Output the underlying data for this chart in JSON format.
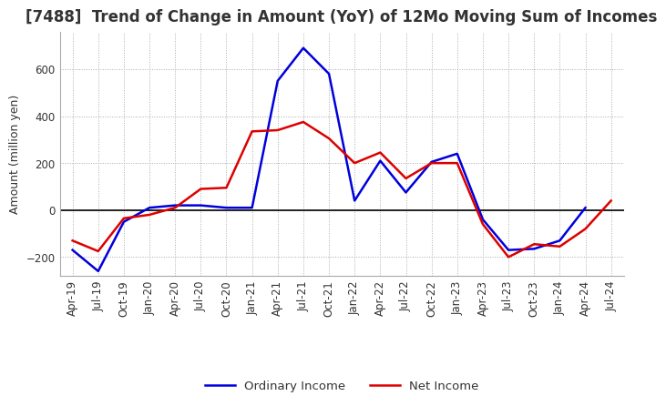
{
  "title": "[7488]  Trend of Change in Amount (YoY) of 12Mo Moving Sum of Incomes",
  "ylabel": "Amount (million yen)",
  "ylim": [
    -280,
    760
  ],
  "yticks": [
    -200,
    0,
    200,
    400,
    600
  ],
  "background_color": "#ffffff",
  "grid_color": "#aaaaaa",
  "ordinary_income_color": "#0000dd",
  "net_income_color": "#dd0000",
  "x_labels": [
    "Apr-19",
    "Jul-19",
    "Oct-19",
    "Jan-20",
    "Apr-20",
    "Jul-20",
    "Oct-20",
    "Jan-21",
    "Apr-21",
    "Jul-21",
    "Oct-21",
    "Jan-22",
    "Apr-22",
    "Jul-22",
    "Oct-22",
    "Jan-23",
    "Apr-23",
    "Jul-23",
    "Oct-23",
    "Jan-24",
    "Apr-24",
    "Jul-24"
  ],
  "ordinary_income": [
    -170,
    -260,
    -50,
    10,
    20,
    20,
    10,
    10,
    550,
    690,
    580,
    40,
    210,
    75,
    205,
    240,
    -40,
    -170,
    -165,
    -130,
    10,
    null
  ],
  "net_income": [
    -130,
    -175,
    -35,
    -20,
    10,
    90,
    95,
    335,
    340,
    375,
    305,
    200,
    245,
    135,
    200,
    200,
    -60,
    -200,
    -145,
    -155,
    -80,
    40
  ],
  "legend_ordinary": "Ordinary Income",
  "legend_net": "Net Income",
  "title_fontsize": 12,
  "tick_fontsize": 8.5,
  "ylabel_fontsize": 9
}
